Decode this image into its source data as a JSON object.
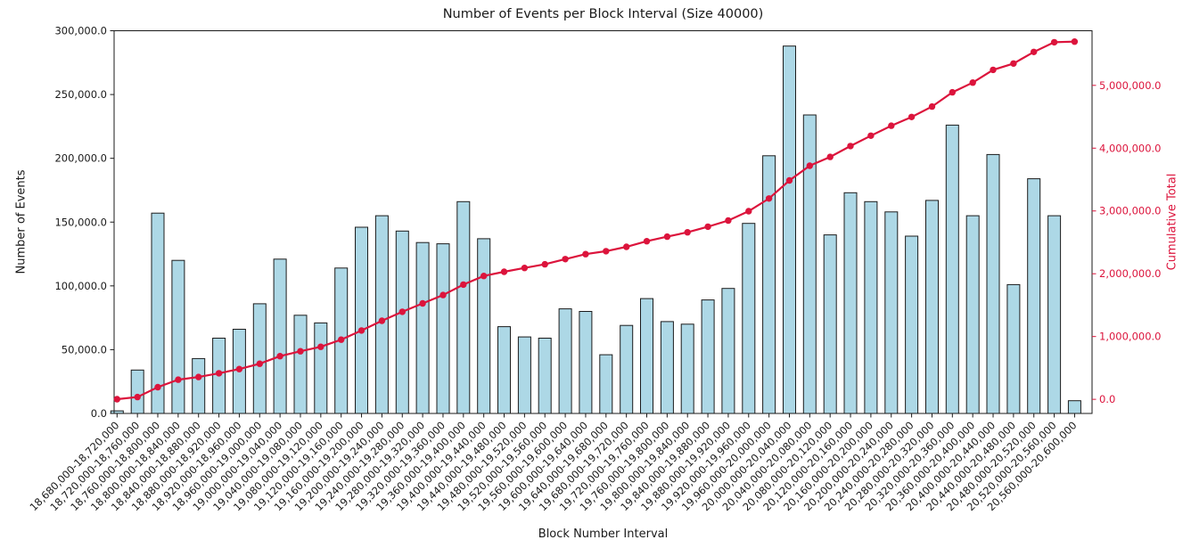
{
  "title": "Number of Events per Block Interval (Size 40000)",
  "colors": {
    "bar_fill": "#ADD8E6",
    "bar_edge": "#1c1c1c",
    "cumulative_red": "#dc143c",
    "text": "#1a1a1a",
    "spine": "#1a1a1a"
  },
  "chart_data": {
    "type": "bar",
    "title": "Number of Events per Block Interval (Size 40000)",
    "xlabel": "Block Number Interval",
    "ylabel_left": "Number of Events",
    "ylabel_right": "Cumulative Total",
    "grid": false,
    "legend": "none",
    "left_ylim": [
      0,
      300000
    ],
    "right_ylim": [
      -225000,
      5870000
    ],
    "left_ticks": [
      "0.0",
      "50,000.0",
      "100,000.0",
      "150,000.0",
      "200,000.0",
      "250,000.0",
      "300,000.0"
    ],
    "right_ticks": [
      "0.0",
      "1,000,000.0",
      "2,000,000.0",
      "3,000,000.0",
      "4,000,000.0",
      "5,000,000.0"
    ],
    "categories": [
      "18,680,000-18,720,000",
      "18,720,000-18,760,000",
      "18,760,000-18,800,000",
      "18,800,000-18,840,000",
      "18,840,000-18,880,000",
      "18,880,000-18,920,000",
      "18,920,000-18,960,000",
      "18,960,000-19,000,000",
      "19,000,000-19,040,000",
      "19,040,000-19,080,000",
      "19,080,000-19,120,000",
      "19,120,000-19,160,000",
      "19,160,000-19,200,000",
      "19,200,000-19,240,000",
      "19,240,000-19,280,000",
      "19,280,000-19,320,000",
      "19,320,000-19,360,000",
      "19,360,000-19,400,000",
      "19,400,000-19,440,000",
      "19,440,000-19,480,000",
      "19,480,000-19,520,000",
      "19,520,000-19,560,000",
      "19,560,000-19,600,000",
      "19,600,000-19,640,000",
      "19,640,000-19,680,000",
      "19,680,000-19,720,000",
      "19,720,000-19,760,000",
      "19,760,000-19,800,000",
      "19,800,000-19,840,000",
      "19,840,000-19,880,000",
      "19,880,000-19,920,000",
      "19,920,000-19,960,000",
      "19,960,000-20,000,000",
      "20,000,000-20,040,000",
      "20,040,000-20,080,000",
      "20,080,000-20,120,000",
      "20,120,000-20,160,000",
      "20,160,000-20,200,000",
      "20,200,000-20,240,000",
      "20,240,000-20,280,000",
      "20,280,000-20,320,000",
      "20,320,000-20,360,000",
      "20,360,000-20,400,000",
      "20,400,000-20,440,000",
      "20,440,000-20,480,000",
      "20,480,000-20,520,000",
      "20,520,000-20,560,000",
      "20,560,000-20,600,000"
    ],
    "series": [
      {
        "name": "Number of Events",
        "type": "bar",
        "axis": "left",
        "color": "#ADD8E6",
        "edge_color": "#1c1c1c",
        "values": [
          2000,
          34000,
          157000,
          120000,
          43000,
          59000,
          66000,
          86000,
          121000,
          77000,
          71000,
          114000,
          146000,
          155000,
          143000,
          134000,
          133000,
          166000,
          137000,
          68000,
          60000,
          59000,
          82000,
          80000,
          46000,
          69000,
          90000,
          72000,
          70000,
          89000,
          98000,
          149000,
          202000,
          288000,
          234000,
          140000,
          173000,
          166000,
          158000,
          139000,
          167000,
          226000,
          155000,
          203000,
          101000,
          184000,
          155000,
          10000
        ]
      },
      {
        "name": "Cumulative Total",
        "type": "line",
        "axis": "right",
        "color": "#dc143c",
        "marker": "circle",
        "values": [
          2000,
          36000,
          193000,
          313000,
          356000,
          415000,
          481000,
          567000,
          688000,
          765000,
          836000,
          950000,
          1096000,
          1251000,
          1394000,
          1528000,
          1661000,
          1827000,
          1964000,
          2032000,
          2092000,
          2151000,
          2233000,
          2313000,
          2359000,
          2428000,
          2518000,
          2590000,
          2660000,
          2749000,
          2847000,
          2996000,
          3198000,
          3486000,
          3720000,
          3860000,
          4033000,
          4199000,
          4357000,
          4496000,
          4663000,
          4889000,
          5044000,
          5247000,
          5348000,
          5532000,
          5687000,
          5697000
        ]
      }
    ]
  }
}
